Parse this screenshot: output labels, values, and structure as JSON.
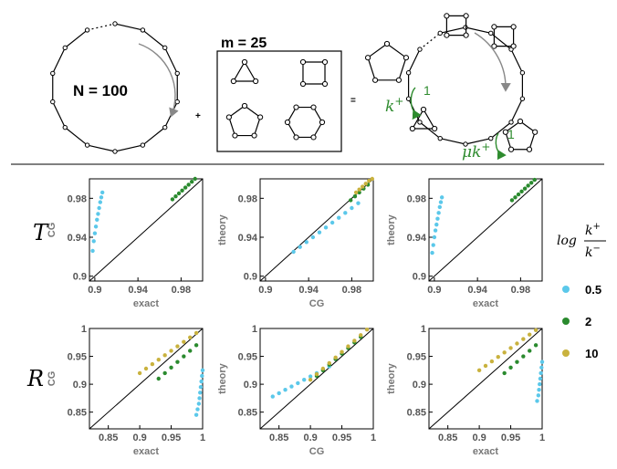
{
  "diagram": {
    "n_label": "N = 100",
    "m_label": "m = 25",
    "plus": "+",
    "equals": "=",
    "rate_plus": "k",
    "rate_plus_sup": "+",
    "rate_plus_val": "1",
    "rate_mu": "μk",
    "rate_mu_sup": "+",
    "rate_mu_val": "1"
  },
  "rows": {
    "top": "T",
    "bottom": "R"
  },
  "legend": {
    "title_log": "log",
    "title_num": "k",
    "title_num_sup": "+",
    "title_den": "k",
    "title_den_sup": "−",
    "items": [
      {
        "label": "0.5",
        "color": "#5bc8ea"
      },
      {
        "label": "2",
        "color": "#2a8a2e"
      },
      {
        "label": "10",
        "color": "#c9b23e"
      }
    ]
  },
  "chart_data": [
    {
      "type": "scatter",
      "row": "T",
      "xlabel": "exact",
      "ylabel": "CG",
      "xlim": [
        0.895,
        1.0
      ],
      "ylim": [
        0.895,
        1.0
      ],
      "xticks": [
        "0.9",
        "0.94",
        "0.98"
      ],
      "yticks": [
        "0.9",
        "0.94",
        "0.98"
      ],
      "diagonal": true,
      "series": [
        {
          "name": "0.5",
          "color": "#5bc8ea",
          "x": [
            0.898,
            0.899,
            0.9,
            0.901,
            0.902,
            0.903,
            0.904,
            0.905,
            0.906,
            0.907
          ],
          "y": [
            0.926,
            0.936,
            0.944,
            0.951,
            0.958,
            0.964,
            0.97,
            0.976,
            0.981,
            0.986
          ]
        },
        {
          "name": "2",
          "color": "#2a8a2e",
          "x": [
            0.972,
            0.975,
            0.978,
            0.981,
            0.984,
            0.987,
            0.99,
            0.993
          ],
          "y": [
            0.979,
            0.982,
            0.985,
            0.988,
            0.991,
            0.994,
            0.997,
            1.0
          ]
        },
        {
          "name": "10",
          "color": "#c9b23e",
          "x": [],
          "y": []
        }
      ]
    },
    {
      "type": "scatter",
      "row": "T",
      "xlabel": "CG",
      "ylabel": "theory",
      "xlim": [
        0.895,
        1.0
      ],
      "ylim": [
        0.895,
        1.0
      ],
      "xticks": [
        "0.9",
        "0.94",
        "0.98"
      ],
      "yticks": [
        "0.9",
        "0.94",
        "0.98"
      ],
      "diagonal": true,
      "series": [
        {
          "name": "0.5",
          "color": "#5bc8ea",
          "x": [
            0.926,
            0.932,
            0.938,
            0.944,
            0.95,
            0.956,
            0.962,
            0.968,
            0.974,
            0.98,
            0.986
          ],
          "y": [
            0.925,
            0.93,
            0.935,
            0.94,
            0.945,
            0.95,
            0.955,
            0.96,
            0.965,
            0.97,
            0.975
          ]
        },
        {
          "name": "2",
          "color": "#2a8a2e",
          "x": [
            0.979,
            0.983,
            0.987,
            0.991,
            0.995
          ],
          "y": [
            0.978,
            0.982,
            0.986,
            0.99,
            0.994
          ]
        },
        {
          "name": "10",
          "color": "#c9b23e",
          "x": [
            0.984,
            0.987,
            0.99,
            0.993,
            0.996,
            0.999
          ],
          "y": [
            0.986,
            0.989,
            0.992,
            0.995,
            0.998,
            1.0
          ]
        }
      ]
    },
    {
      "type": "scatter",
      "row": "T",
      "xlabel": "exact",
      "ylabel": "theory",
      "xlim": [
        0.895,
        1.0
      ],
      "ylim": [
        0.895,
        1.0
      ],
      "xticks": [
        "0.9",
        "0.94",
        "0.98"
      ],
      "yticks": [
        "0.9",
        "0.94",
        "0.98"
      ],
      "diagonal": true,
      "series": [
        {
          "name": "0.5",
          "color": "#5bc8ea",
          "x": [
            0.898,
            0.899,
            0.9,
            0.901,
            0.902,
            0.903,
            0.904,
            0.905,
            0.906,
            0.907
          ],
          "y": [
            0.924,
            0.932,
            0.94,
            0.947,
            0.953,
            0.959,
            0.965,
            0.971,
            0.976,
            0.981
          ]
        },
        {
          "name": "2",
          "color": "#2a8a2e",
          "x": [
            0.972,
            0.975,
            0.978,
            0.981,
            0.984,
            0.987,
            0.99,
            0.993
          ],
          "y": [
            0.978,
            0.981,
            0.984,
            0.987,
            0.99,
            0.993,
            0.996,
            0.999
          ]
        },
        {
          "name": "10",
          "color": "#c9b23e",
          "x": [],
          "y": []
        }
      ]
    },
    {
      "type": "scatter",
      "row": "R",
      "xlabel": "exact",
      "ylabel": "CG",
      "xlim": [
        0.82,
        1.0
      ],
      "ylim": [
        0.82,
        1.0
      ],
      "xticks": [
        "0.85",
        "0.9",
        "0.95",
        "1"
      ],
      "yticks": [
        "0.85",
        "0.9",
        "0.95",
        "1"
      ],
      "diagonal": true,
      "series": [
        {
          "name": "0.5",
          "color": "#5bc8ea",
          "x": [
            0.99,
            0.992,
            0.994,
            0.995,
            0.996,
            0.997,
            0.998,
            0.999,
            1.0
          ],
          "y": [
            0.845,
            0.855,
            0.865,
            0.875,
            0.885,
            0.895,
            0.905,
            0.915,
            0.925
          ]
        },
        {
          "name": "2",
          "color": "#2a8a2e",
          "x": [
            0.93,
            0.94,
            0.95,
            0.96,
            0.97,
            0.98,
            0.99
          ],
          "y": [
            0.91,
            0.92,
            0.93,
            0.94,
            0.95,
            0.96,
            0.97
          ]
        },
        {
          "name": "10",
          "color": "#c9b23e",
          "x": [
            0.9,
            0.91,
            0.92,
            0.93,
            0.94,
            0.95,
            0.96,
            0.97,
            0.98,
            0.99
          ],
          "y": [
            0.92,
            0.928,
            0.936,
            0.944,
            0.952,
            0.96,
            0.968,
            0.976,
            0.984,
            0.992
          ]
        }
      ]
    },
    {
      "type": "scatter",
      "row": "R",
      "xlabel": "CG",
      "ylabel": "theory",
      "xlim": [
        0.82,
        1.0
      ],
      "ylim": [
        0.82,
        1.0
      ],
      "xticks": [
        "0.85",
        "0.9",
        "0.95",
        "1"
      ],
      "yticks": [
        "0.85",
        "0.9",
        "0.95",
        "1"
      ],
      "diagonal": true,
      "series": [
        {
          "name": "0.5",
          "color": "#5bc8ea",
          "x": [
            0.84,
            0.85,
            0.86,
            0.87,
            0.88,
            0.89,
            0.9,
            0.91,
            0.92,
            0.93
          ],
          "y": [
            0.878,
            0.884,
            0.89,
            0.896,
            0.902,
            0.908,
            0.914,
            0.92,
            0.926,
            0.932
          ]
        },
        {
          "name": "2",
          "color": "#2a8a2e",
          "x": [
            0.91,
            0.92,
            0.93,
            0.94,
            0.95,
            0.96,
            0.97,
            0.98
          ],
          "y": [
            0.915,
            0.925,
            0.935,
            0.945,
            0.955,
            0.965,
            0.975,
            0.985
          ]
        },
        {
          "name": "10",
          "color": "#c9b23e",
          "x": [
            0.9,
            0.91,
            0.92,
            0.93,
            0.94,
            0.95,
            0.96,
            0.97,
            0.98,
            0.99
          ],
          "y": [
            0.908,
            0.918,
            0.928,
            0.938,
            0.948,
            0.958,
            0.968,
            0.978,
            0.988,
            0.998
          ]
        }
      ]
    },
    {
      "type": "scatter",
      "row": "R",
      "xlabel": "exact",
      "ylabel": "theory",
      "xlim": [
        0.82,
        1.0
      ],
      "ylim": [
        0.82,
        1.0
      ],
      "xticks": [
        "0.85",
        "0.9",
        "0.95",
        "1"
      ],
      "yticks": [
        "0.85",
        "0.9",
        "0.95",
        "1"
      ],
      "diagonal": true,
      "series": [
        {
          "name": "0.5",
          "color": "#5bc8ea",
          "x": [
            0.992,
            0.994,
            0.995,
            0.996,
            0.997,
            0.998,
            0.999,
            1.0
          ],
          "y": [
            0.87,
            0.88,
            0.89,
            0.9,
            0.91,
            0.92,
            0.93,
            0.94
          ]
        },
        {
          "name": "2",
          "color": "#2a8a2e",
          "x": [
            0.94,
            0.95,
            0.96,
            0.97,
            0.98,
            0.99
          ],
          "y": [
            0.92,
            0.93,
            0.94,
            0.95,
            0.96,
            0.97
          ]
        },
        {
          "name": "10",
          "color": "#c9b23e",
          "x": [
            0.9,
            0.91,
            0.92,
            0.93,
            0.94,
            0.95,
            0.96,
            0.97,
            0.98,
            0.99
          ],
          "y": [
            0.925,
            0.933,
            0.941,
            0.949,
            0.957,
            0.965,
            0.973,
            0.981,
            0.989,
            0.997
          ]
        }
      ]
    }
  ]
}
